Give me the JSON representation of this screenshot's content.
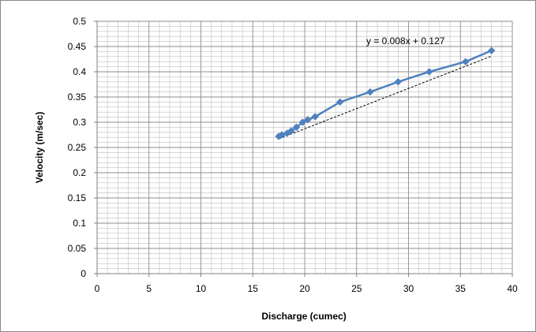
{
  "chart_data": {
    "type": "line",
    "xlabel": "Discharge (cumec)",
    "ylabel": "Velocity (m/sec)",
    "xlim": [
      0,
      40
    ],
    "ylim": [
      0,
      0.5
    ],
    "x_ticks": [
      "0",
      "5",
      "10",
      "15",
      "20",
      "25",
      "30",
      "35",
      "40"
    ],
    "y_ticks": [
      "0",
      "0.05",
      "0.1",
      "0.15",
      "0.2",
      "0.25",
      "0.3",
      "0.35",
      "0.4",
      "0.45",
      "0.5"
    ],
    "grid": true,
    "legend": "none",
    "series": [
      {
        "color": "#4f81bd",
        "marker": "diamond",
        "x": [
          17.5,
          17.8,
          18.3,
          18.7,
          19.2,
          19.8,
          20.3,
          21.0,
          23.4,
          26.3,
          29.0,
          32.0,
          35.5,
          38.0
        ],
        "y": [
          0.272,
          0.275,
          0.278,
          0.283,
          0.29,
          0.3,
          0.305,
          0.311,
          0.34,
          0.36,
          0.38,
          0.4,
          0.42,
          0.442
        ]
      }
    ],
    "trendline": {
      "color": "#000000",
      "style": "dashed",
      "slope": 0.008,
      "intercept": 0.127,
      "x_range": [
        17.5,
        38.0
      ],
      "equation": "y = 0.008x + 0.127"
    }
  }
}
